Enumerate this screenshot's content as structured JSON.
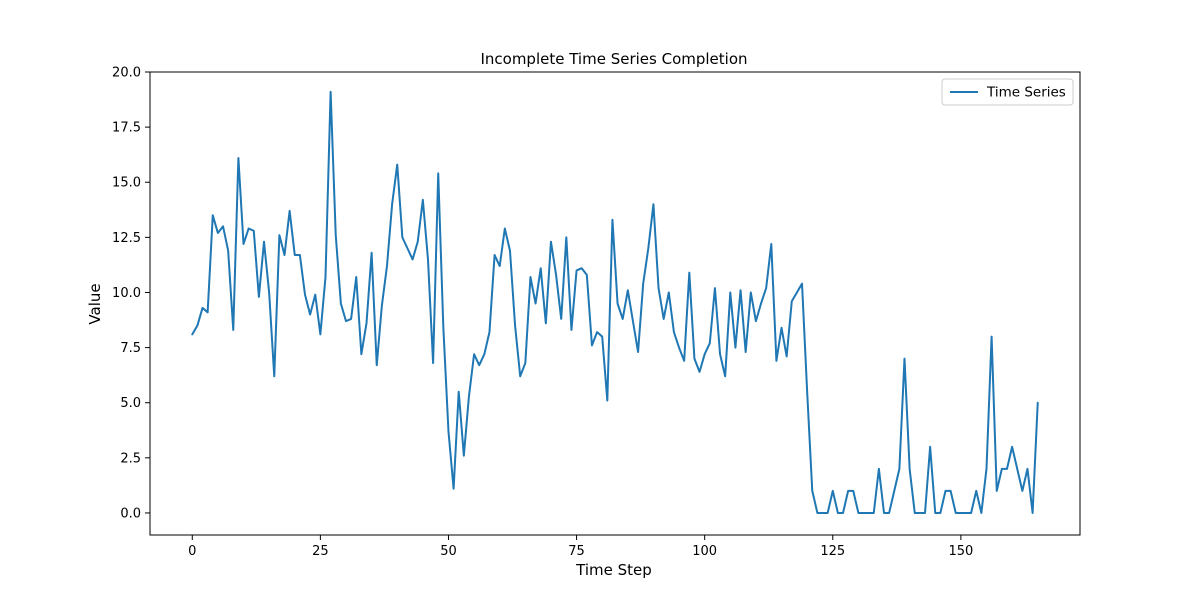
{
  "chart_data": {
    "type": "line",
    "title": "Incomplete Time Series Completion",
    "xlabel": "Time Step",
    "ylabel": "Value",
    "xlim": [
      -8.25,
      173.25
    ],
    "ylim": [
      -1.0,
      20.0
    ],
    "xticks": [
      0,
      25,
      50,
      75,
      100,
      125,
      150
    ],
    "yticks": [
      0.0,
      2.5,
      5.0,
      7.5,
      10.0,
      12.5,
      15.0,
      17.5,
      20.0
    ],
    "xtick_labels": [
      "0",
      "25",
      "50",
      "75",
      "100",
      "125",
      "150"
    ],
    "ytick_labels": [
      "0.0",
      "2.5",
      "5.0",
      "7.5",
      "10.0",
      "12.5",
      "15.0",
      "17.5",
      "20.0"
    ],
    "grid": false,
    "legend": "top-right",
    "color": "#1f77b4",
    "series": [
      {
        "name": "Time Series",
        "x": [
          0,
          1,
          2,
          3,
          4,
          5,
          6,
          7,
          8,
          9,
          10,
          11,
          12,
          13,
          14,
          15,
          16,
          17,
          18,
          19,
          20,
          21,
          22,
          23,
          24,
          25,
          26,
          27,
          28,
          29,
          30,
          31,
          32,
          33,
          34,
          35,
          36,
          37,
          38,
          39,
          40,
          41,
          42,
          43,
          44,
          45,
          46,
          47,
          48,
          49,
          50,
          51,
          52,
          53,
          54,
          55,
          56,
          57,
          58,
          59,
          60,
          61,
          62,
          63,
          64,
          65,
          66,
          67,
          68,
          69,
          70,
          71,
          72,
          73,
          74,
          75,
          76,
          77,
          78,
          79,
          80,
          81,
          82,
          83,
          84,
          85,
          86,
          87,
          88,
          89,
          90,
          91,
          92,
          93,
          94,
          95,
          96,
          97,
          98,
          99,
          100,
          101,
          102,
          103,
          104,
          105,
          106,
          107,
          108,
          109,
          110,
          111,
          112,
          113,
          114,
          115,
          116,
          117,
          118,
          119,
          120,
          121,
          122,
          123,
          124,
          125,
          126,
          127,
          128,
          129,
          130,
          131,
          132,
          133,
          134,
          135,
          136,
          137,
          138,
          139,
          140,
          141,
          142,
          143,
          144,
          145,
          146,
          147,
          148,
          149,
          150,
          151,
          152,
          153,
          154,
          155,
          156,
          157,
          158,
          159,
          160,
          161,
          162,
          163,
          164,
          165
        ],
        "values": [
          8.1,
          8.5,
          9.3,
          9.1,
          13.5,
          12.7,
          13.0,
          11.9,
          8.3,
          16.1,
          12.2,
          12.9,
          12.8,
          9.8,
          12.3,
          10.0,
          6.2,
          12.6,
          11.7,
          13.7,
          11.7,
          11.7,
          9.9,
          9.0,
          9.9,
          8.1,
          10.7,
          19.1,
          12.6,
          9.5,
          8.7,
          8.8,
          10.7,
          7.2,
          8.6,
          11.8,
          6.7,
          9.4,
          11.2,
          14.0,
          15.8,
          12.5,
          12.0,
          11.5,
          12.3,
          14.2,
          11.5,
          6.8,
          15.4,
          8.4,
          3.7,
          1.1,
          5.5,
          2.6,
          5.3,
          7.2,
          6.7,
          7.2,
          8.2,
          11.7,
          11.2,
          12.9,
          11.9,
          8.5,
          6.2,
          6.8,
          10.7,
          9.5,
          11.1,
          8.6,
          12.3,
          10.8,
          8.8,
          12.5,
          8.3,
          11.0,
          11.1,
          10.8,
          7.6,
          8.2,
          8.0,
          5.1,
          13.3,
          9.5,
          8.8,
          10.1,
          8.7,
          7.3,
          10.4,
          12.0,
          14.0,
          10.2,
          8.8,
          10.0,
          8.2,
          7.5,
          6.9,
          10.9,
          7.0,
          6.4,
          7.2,
          7.7,
          10.2,
          7.2,
          6.2,
          10.0,
          7.5,
          10.1,
          7.3,
          10.0,
          8.7,
          9.5,
          10.2,
          12.2,
          6.9,
          8.4,
          7.1,
          9.6,
          10.0,
          10.4,
          5.5,
          1.0,
          0,
          0,
          0,
          1.0,
          0,
          0,
          1.0,
          1.0,
          0,
          0,
          0,
          0,
          2.0,
          0,
          0,
          1.0,
          2.0,
          7.0,
          2.0,
          0,
          0,
          0,
          3.0,
          0,
          0,
          1.0,
          1.0,
          0,
          0,
          0,
          0,
          1.0,
          0,
          2.0,
          8.0,
          1.0,
          2.0,
          2.0,
          3.0,
          2.0,
          1.0,
          2.0,
          0,
          5.0
        ]
      }
    ]
  }
}
